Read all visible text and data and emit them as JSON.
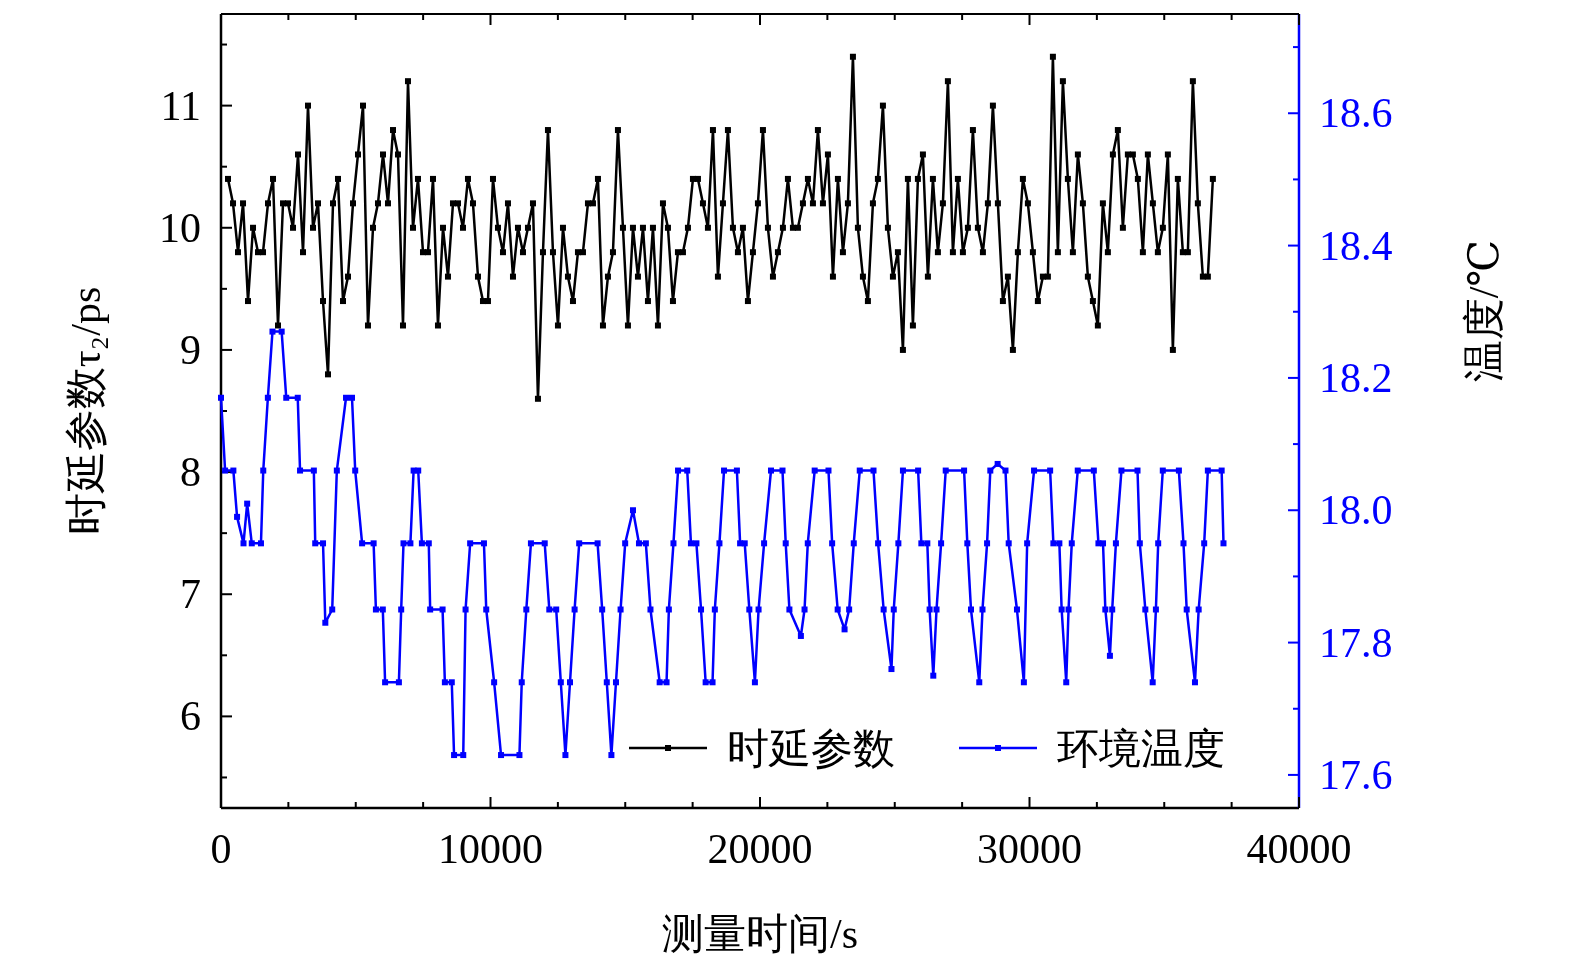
{
  "chart_data": {
    "type": "line",
    "xlabel": "测量时间/s",
    "ylabel": "时延参数τ₂/ps",
    "y2label": "温度/℃",
    "xlim": [
      0,
      40000
    ],
    "xticks": [
      0,
      {
        "value": 2500,
        "label": null
      },
      {
        "value": 5000,
        "label": null
      },
      {
        "value": 7500,
        "label": null
      },
      10000,
      {
        "value": 12500,
        "label": null
      },
      {
        "value": 15000,
        "label": null
      },
      {
        "value": 17500,
        "label": null
      },
      20000,
      {
        "value": 22500,
        "label": null
      },
      {
        "value": 25000,
        "label": null
      },
      {
        "value": 27500,
        "label": null
      },
      30000,
      {
        "value": 32500,
        "label": null
      },
      {
        "value": 35000,
        "label": null
      },
      {
        "value": 37500,
        "label": null
      },
      40000
    ],
    "ylim": [
      5.25,
      11.75
    ],
    "yticks": [
      {
        "value": 5.5,
        "label": null
      },
      6,
      {
        "value": 6.5,
        "label": null
      },
      7,
      {
        "value": 7.5,
        "label": null
      },
      8,
      {
        "value": 8.5,
        "label": null
      },
      9,
      {
        "value": 9.5,
        "label": null
      },
      10,
      {
        "value": 10.5,
        "label": null
      },
      11,
      {
        "value": 11.5,
        "label": null
      }
    ],
    "y2lim": [
      17.55,
      18.75
    ],
    "y2ticks": [
      {
        "value": 17.6,
        "label": "17.6"
      },
      {
        "value": 17.7,
        "label": null
      },
      {
        "value": 17.8,
        "label": "17.8"
      },
      {
        "value": 17.9,
        "label": null
      },
      {
        "value": 18.0,
        "label": "18.0"
      },
      {
        "value": 18.1,
        "label": null
      },
      {
        "value": 18.2,
        "label": "18.2"
      },
      {
        "value": 18.3,
        "label": null
      },
      {
        "value": 18.4,
        "label": "18.4"
      },
      {
        "value": 18.5,
        "label": null
      },
      {
        "value": 18.6,
        "label": "18.6"
      },
      {
        "value": 18.7,
        "label": null
      }
    ],
    "marker": "square",
    "line_style": "solid",
    "legend": "bottom right",
    "series": [
      {
        "name": "时延参数",
        "color": "#000000",
        "x": [
          260,
          446,
          631,
          817,
          1002,
          1188,
          1373,
          1559,
          1744,
          1930,
          2115,
          2301,
          2486,
          2672,
          2857,
          3043,
          3228,
          3414,
          3599,
          3785,
          3970,
          4156,
          4341,
          4527,
          4712,
          4898,
          5083,
          5269,
          5454,
          5640,
          5825,
          6011,
          6196,
          6382,
          6567,
          6753,
          6938,
          7124,
          7309,
          7495,
          7680,
          7866,
          8051,
          8237,
          8422,
          8608,
          8793,
          8979,
          9164,
          9350,
          9535,
          9721,
          9906,
          10092,
          10277,
          10463,
          10648,
          10834,
          11019,
          11205,
          11390,
          11576,
          11761,
          11947,
          12132,
          12318,
          12503,
          12689,
          12874,
          13060,
          13245,
          13431,
          13616,
          13802,
          13987,
          14173,
          14358,
          14544,
          14729,
          14915,
          15100,
          15286,
          15471,
          15657,
          15842,
          16028,
          16213,
          16399,
          16584,
          16770,
          16955,
          17141,
          17326,
          17512,
          17697,
          17883,
          18068,
          18254,
          18439,
          18625,
          18810,
          18996,
          19181,
          19367,
          19552,
          19738,
          19923,
          20109,
          20294,
          20480,
          20665,
          20851,
          21036,
          21222,
          21407,
          21593,
          21778,
          21964,
          22149,
          22335,
          22520,
          22706,
          22891,
          23077,
          23262,
          23448,
          23633,
          23819,
          24004,
          24190,
          24375,
          24561,
          24746,
          24932,
          25117,
          25303,
          25488,
          25674,
          25859,
          26045,
          26230,
          26416,
          26601,
          26787,
          26972,
          27158,
          27343,
          27529,
          27714,
          27900,
          28085,
          28271,
          28456,
          28642,
          28827,
          29013,
          29198,
          29384,
          29569,
          29755,
          29940,
          30126,
          30311,
          30497,
          30682,
          30868,
          31053,
          31239,
          31424,
          31610,
          31795,
          31981,
          32166,
          32352,
          32537,
          32723,
          32908,
          33094,
          33279,
          33465,
          33650,
          33836,
          34021,
          34207,
          34392,
          34578,
          34763,
          34949,
          35134,
          35320,
          35505,
          35691,
          35876,
          36062,
          36247,
          36433,
          36618,
          36804
        ],
        "values": [
          10.4,
          10.2,
          9.8,
          10.2,
          9.4,
          10.0,
          9.8,
          9.8,
          10.2,
          10.4,
          9.2,
          10.2,
          10.2,
          10.0,
          10.6,
          9.8,
          11.0,
          10.0,
          10.2,
          9.4,
          8.8,
          10.2,
          10.4,
          9.4,
          9.6,
          10.2,
          10.6,
          11.0,
          9.2,
          10.0,
          10.2,
          10.6,
          10.2,
          10.8,
          10.6,
          9.2,
          11.2,
          10.0,
          10.4,
          9.8,
          9.8,
          10.4,
          9.2,
          10.0,
          9.6,
          10.2,
          10.2,
          10.0,
          10.4,
          10.2,
          9.6,
          9.4,
          9.4,
          10.4,
          10.0,
          9.8,
          10.2,
          9.6,
          10.0,
          9.8,
          10.0,
          10.2,
          8.6,
          9.8,
          10.8,
          9.8,
          9.2,
          10.0,
          9.6,
          9.4,
          9.8,
          9.8,
          10.2,
          10.2,
          10.4,
          9.2,
          9.6,
          9.8,
          10.8,
          10.0,
          9.2,
          10.0,
          9.6,
          10.0,
          9.4,
          10.0,
          9.2,
          10.2,
          10.0,
          9.4,
          9.8,
          9.8,
          10.0,
          10.4,
          10.4,
          10.2,
          10.0,
          10.8,
          9.6,
          10.2,
          10.8,
          10.0,
          9.8,
          10.0,
          9.4,
          9.8,
          10.2,
          10.8,
          10.0,
          9.6,
          9.8,
          10.0,
          10.4,
          10.0,
          10.0,
          10.2,
          10.4,
          10.2,
          10.8,
          10.2,
          10.6,
          9.6,
          10.4,
          9.8,
          10.2,
          11.4,
          10.0,
          9.6,
          9.4,
          10.2,
          10.4,
          11.0,
          10.0,
          9.6,
          9.8,
          9.0,
          10.4,
          9.2,
          10.4,
          10.6,
          9.6,
          10.4,
          9.8,
          10.2,
          11.2,
          9.8,
          10.4,
          9.8,
          10.0,
          10.8,
          10.0,
          9.8,
          10.2,
          11.0,
          10.2,
          9.4,
          9.6,
          9.0,
          9.8,
          10.4,
          10.2,
          9.8,
          9.4,
          9.6,
          9.6,
          11.4,
          9.8,
          11.2,
          10.4,
          9.8,
          10.6,
          10.2,
          9.6,
          9.4,
          9.2,
          10.2,
          9.8,
          10.6,
          10.8,
          10.0,
          10.6,
          10.6,
          10.4,
          9.8,
          10.6,
          10.2,
          9.8,
          10.0,
          10.6,
          9.0,
          10.4,
          9.8,
          9.8,
          11.2,
          10.2,
          9.6,
          9.6,
          10.4
        ]
      },
      {
        "name": "环境温度",
        "color": "#0000ff",
        "axis": "y2",
        "x": [
          0,
          152,
          459,
          596,
          835,
          971,
          1142,
          1483,
          1568,
          1739,
          1910,
          2251,
          2421,
          2848,
          2933,
          3445,
          3496,
          3786,
          3871,
          4127,
          4298,
          4639,
          4861,
          4980,
          5236,
          5663,
          5748,
          6004,
          6089,
          6601,
          6686,
          6772,
          7028,
          7147,
          7318,
          7454,
          7710,
          7761,
          8222,
          8307,
          8563,
          8648,
          8989,
          9075,
          9245,
          9757,
          9842,
          10135,
          10391,
          11074,
          11159,
          11329,
          11500,
          12012,
          12182,
          12438,
          12609,
          12780,
          12950,
          13121,
          13291,
          13974,
          14144,
          14315,
          14486,
          14656,
          14827,
          14997,
          15287,
          15509,
          15765,
          15936,
          16277,
          16533,
          16618,
          16789,
          16959,
          17300,
          17437,
          17641,
          17812,
          17983,
          18239,
          18324,
          18495,
          18665,
          19143,
          19262,
          19433,
          19604,
          19811,
          19947,
          20152,
          20408,
          20835,
          20954,
          21091,
          21517,
          21653,
          21773,
          22029,
          22541,
          22677,
          22882,
          23138,
          23308,
          23479,
          23701,
          24212,
          24383,
          24588,
          24878,
          24963,
          25134,
          25304,
          25867,
          25987,
          26209,
          26294,
          26430,
          26550,
          26720,
          26891,
          27573,
          27693,
          27829,
          28136,
          28256,
          28426,
          28546,
          28818,
          29109,
          29228,
          29535,
          29791,
          29913,
          30169,
          30766,
          30886,
          31108,
          31193,
          31363,
          31449,
          31568,
          31790,
          32387,
          32558,
          32728,
          32814,
          32984,
          33069,
          33206,
          33411,
          34008,
          34093,
          34298,
          34571,
          34690,
          34775,
          34946,
          35543,
          35714,
          35833,
          36140,
          36277,
          36482,
          36618,
          37130,
          37198
        ],
        "values": [
          18.17,
          18.06,
          18.06,
          17.99,
          17.95,
          18.01,
          17.95,
          17.95,
          18.06,
          18.17,
          18.27,
          18.27,
          18.17,
          18.17,
          18.06,
          18.06,
          17.95,
          17.95,
          17.83,
          17.85,
          18.06,
          18.17,
          18.17,
          18.06,
          17.95,
          17.95,
          17.85,
          17.85,
          17.74,
          17.74,
          17.85,
          17.95,
          17.95,
          18.06,
          18.06,
          17.95,
          17.95,
          17.85,
          17.85,
          17.74,
          17.74,
          17.63,
          17.63,
          17.85,
          17.95,
          17.95,
          17.85,
          17.74,
          17.63,
          17.63,
          17.74,
          17.85,
          17.95,
          17.95,
          17.85,
          17.85,
          17.74,
          17.63,
          17.74,
          17.85,
          17.95,
          17.95,
          17.85,
          17.74,
          17.63,
          17.74,
          17.85,
          17.95,
          18.0,
          17.95,
          17.95,
          17.85,
          17.74,
          17.74,
          17.85,
          17.95,
          18.06,
          18.06,
          17.95,
          17.95,
          17.85,
          17.74,
          17.74,
          17.85,
          17.95,
          18.06,
          18.06,
          17.95,
          17.95,
          17.85,
          17.74,
          17.85,
          17.95,
          18.06,
          18.06,
          17.95,
          17.85,
          17.81,
          17.85,
          17.95,
          18.06,
          18.06,
          17.95,
          17.85,
          17.82,
          17.85,
          17.95,
          18.06,
          18.06,
          17.95,
          17.85,
          17.76,
          17.85,
          17.95,
          18.06,
          18.06,
          17.95,
          17.95,
          17.85,
          17.75,
          17.85,
          17.95,
          18.06,
          18.06,
          17.95,
          17.85,
          17.74,
          17.85,
          17.95,
          18.06,
          18.07,
          18.06,
          17.95,
          17.85,
          17.74,
          17.95,
          18.06,
          18.06,
          17.95,
          17.95,
          17.85,
          17.74,
          17.85,
          17.95,
          18.06,
          18.06,
          17.95,
          17.95,
          17.85,
          17.78,
          17.85,
          17.95,
          18.06,
          18.06,
          17.95,
          17.85,
          17.74,
          17.85,
          17.95,
          18.06,
          18.06,
          17.95,
          17.85,
          17.74,
          17.85,
          17.95,
          18.06,
          18.06,
          17.95
        ]
      }
    ]
  }
}
